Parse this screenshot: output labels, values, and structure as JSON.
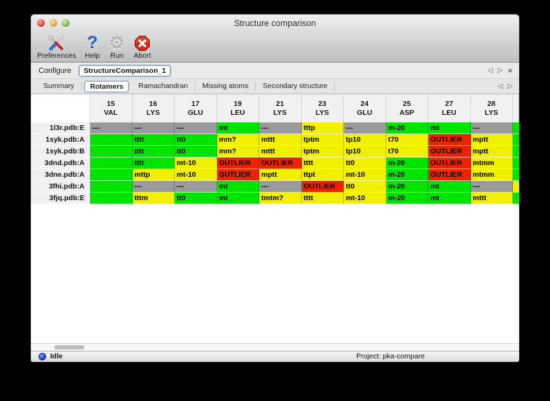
{
  "window": {
    "title": "Structure comparison"
  },
  "toolbar": {
    "items": [
      {
        "label": "Preferences",
        "icon": "tools-icon"
      },
      {
        "label": "Help",
        "icon": "help-icon"
      },
      {
        "label": "Run",
        "icon": "gear-icon"
      },
      {
        "label": "Abort",
        "icon": "abort-icon"
      }
    ],
    "help_glyph": "?",
    "gear_glyph": "⚙"
  },
  "configure": {
    "label": "Configure",
    "value": "StructureComparison_1"
  },
  "nav_icons": {
    "back": "◁",
    "forward": "▷",
    "close": "×"
  },
  "tabs": [
    {
      "label": "Summary",
      "active": false
    },
    {
      "label": "Rotamers",
      "active": true
    },
    {
      "label": "Ramachandran",
      "active": false
    },
    {
      "label": "Missing atoms",
      "active": false
    },
    {
      "label": "Secondary structure",
      "active": false
    }
  ],
  "table": {
    "columns": [
      {
        "number": "15",
        "residue": "VAL"
      },
      {
        "number": "16",
        "residue": "LYS"
      },
      {
        "number": "17",
        "residue": "GLU"
      },
      {
        "number": "19",
        "residue": "LEU"
      },
      {
        "number": "21",
        "residue": "LYS"
      },
      {
        "number": "23",
        "residue": "LYS"
      },
      {
        "number": "24",
        "residue": "GLU"
      },
      {
        "number": "25",
        "residue": "ASP"
      },
      {
        "number": "27",
        "residue": "LEU"
      },
      {
        "number": "28",
        "residue": "LYS"
      }
    ],
    "rows": [
      {
        "label": "1l3r.pdb:E",
        "overflow": "ok",
        "cells": [
          {
            "text": "---",
            "status": "missing"
          },
          {
            "text": "---",
            "status": "missing"
          },
          {
            "text": "---",
            "status": "missing"
          },
          {
            "text": "mt",
            "status": "ok"
          },
          {
            "text": "---",
            "status": "missing"
          },
          {
            "text": "tttp",
            "status": "warn"
          },
          {
            "text": "---",
            "status": "missing"
          },
          {
            "text": "m-20",
            "status": "ok"
          },
          {
            "text": "mt",
            "status": "ok"
          },
          {
            "text": "---",
            "status": "missing"
          }
        ]
      },
      {
        "label": "1syk.pdb:A",
        "overflow": "ok",
        "cells": [
          {
            "text": "",
            "status": "ok"
          },
          {
            "text": "tttt",
            "status": "ok"
          },
          {
            "text": "tt0",
            "status": "ok"
          },
          {
            "text": "mm?",
            "status": "warn"
          },
          {
            "text": "mttt",
            "status": "warn"
          },
          {
            "text": "tptm",
            "status": "warn"
          },
          {
            "text": "tp10",
            "status": "warn"
          },
          {
            "text": "t70",
            "status": "warn"
          },
          {
            "text": "OUTLIER",
            "status": "outlier"
          },
          {
            "text": "mptt",
            "status": "warn"
          }
        ]
      },
      {
        "label": "1syk.pdb:B",
        "overflow": "ok",
        "cells": [
          {
            "text": "",
            "status": "ok"
          },
          {
            "text": "tttt",
            "status": "ok"
          },
          {
            "text": "tt0",
            "status": "ok"
          },
          {
            "text": "mm?",
            "status": "warn"
          },
          {
            "text": "mttt",
            "status": "warn"
          },
          {
            "text": "tptm",
            "status": "warn"
          },
          {
            "text": "tp10",
            "status": "warn"
          },
          {
            "text": "t70",
            "status": "warn"
          },
          {
            "text": "OUTLIER",
            "status": "outlier"
          },
          {
            "text": "mptt",
            "status": "warn"
          }
        ]
      },
      {
        "label": "3dnd.pdb:A",
        "overflow": "ok",
        "cells": [
          {
            "text": "",
            "status": "ok"
          },
          {
            "text": "tttt",
            "status": "ok"
          },
          {
            "text": "mt-10",
            "status": "warn"
          },
          {
            "text": "OUTLIER",
            "status": "outlier"
          },
          {
            "text": "OUTLIER",
            "status": "outlier"
          },
          {
            "text": "tttt",
            "status": "warn"
          },
          {
            "text": "tt0",
            "status": "warn"
          },
          {
            "text": "m-20",
            "status": "ok"
          },
          {
            "text": "OUTLIER",
            "status": "outlier"
          },
          {
            "text": "mtmm",
            "status": "warn"
          }
        ]
      },
      {
        "label": "3dne.pdb:A",
        "overflow": "ok",
        "cells": [
          {
            "text": "",
            "status": "ok"
          },
          {
            "text": "mttp",
            "status": "warn"
          },
          {
            "text": "mt-10",
            "status": "warn"
          },
          {
            "text": "OUTLIER",
            "status": "outlier"
          },
          {
            "text": "mptt",
            "status": "warn"
          },
          {
            "text": "ttpt",
            "status": "warn"
          },
          {
            "text": "mt-10",
            "status": "warn"
          },
          {
            "text": "m-20",
            "status": "ok"
          },
          {
            "text": "OUTLIER",
            "status": "outlier"
          },
          {
            "text": "mtmm",
            "status": "warn"
          }
        ]
      },
      {
        "label": "3fhi.pdb:A",
        "overflow": "warn",
        "cells": [
          {
            "text": "",
            "status": "ok"
          },
          {
            "text": "---",
            "status": "missing"
          },
          {
            "text": "---",
            "status": "missing"
          },
          {
            "text": "mt",
            "status": "ok"
          },
          {
            "text": "---",
            "status": "missing"
          },
          {
            "text": "OUTLIER",
            "status": "outlier"
          },
          {
            "text": "tt0",
            "status": "warn"
          },
          {
            "text": "m-20",
            "status": "ok"
          },
          {
            "text": "mt",
            "status": "ok"
          },
          {
            "text": "---",
            "status": "missing"
          }
        ]
      },
      {
        "label": "3fjq.pdb:E",
        "overflow": "ok",
        "cells": [
          {
            "text": "",
            "status": "ok"
          },
          {
            "text": "tttm",
            "status": "warn"
          },
          {
            "text": "tt0",
            "status": "ok"
          },
          {
            "text": "mt",
            "status": "ok"
          },
          {
            "text": "tmtm?",
            "status": "warn"
          },
          {
            "text": "tttt",
            "status": "warn"
          },
          {
            "text": "mt-10",
            "status": "warn"
          },
          {
            "text": "m-20",
            "status": "ok"
          },
          {
            "text": "mt",
            "status": "ok"
          },
          {
            "text": "mttt",
            "status": "warn"
          }
        ]
      }
    ]
  },
  "status_bar": {
    "state": "Idle",
    "project": "Project: pka-compare"
  },
  "colors": {
    "status": {
      "ok": "#00e400",
      "warn": "#f0f000",
      "outlier": "#ed2200",
      "missing": "#9a9a9a"
    }
  }
}
